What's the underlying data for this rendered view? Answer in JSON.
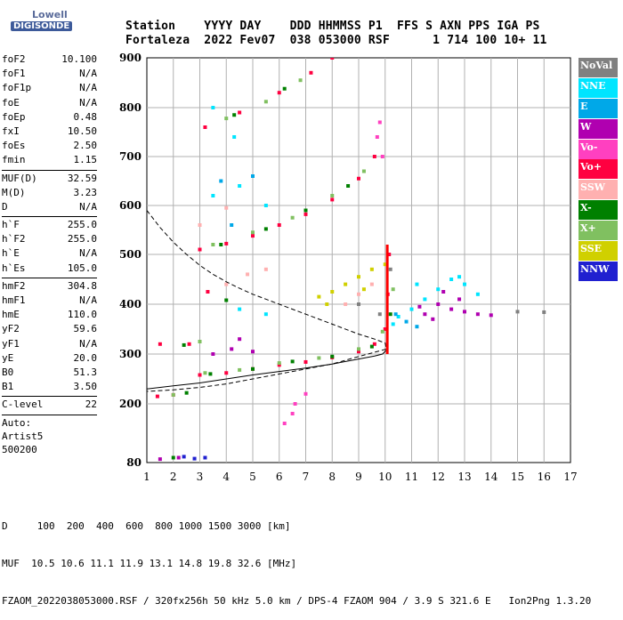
{
  "logo": {
    "top": "Lowell",
    "bottom": "DIGISONDE"
  },
  "header": {
    "row1": "Station    YYYY DAY    DDD HHMMSS P1  FFS S AXN PPS IGA PS",
    "row2": "Fortaleza  2022 Fev07  038 053000 RSF      1 714 100 10+ 11"
  },
  "parameters": {
    "group1": [
      {
        "label": "foF2",
        "value": "10.100"
      },
      {
        "label": "foF1",
        "value": "N/A"
      },
      {
        "label": "foF1p",
        "value": "N/A"
      },
      {
        "label": "foE",
        "value": "N/A"
      },
      {
        "label": "foEp",
        "value": "0.48"
      },
      {
        "label": "fxI",
        "value": "10.50"
      },
      {
        "label": "foEs",
        "value": "2.50"
      },
      {
        "label": "fmin",
        "value": "1.15"
      }
    ],
    "group2": [
      {
        "label": "MUF(D)",
        "value": "32.59"
      },
      {
        "label": "M(D)",
        "value": "3.23"
      },
      {
        "label": "D",
        "value": "N/A"
      }
    ],
    "group3": [
      {
        "label": "h`F",
        "value": "255.0"
      },
      {
        "label": "h`F2",
        "value": "255.0"
      },
      {
        "label": "h`E",
        "value": "N/A"
      },
      {
        "label": "h`Es",
        "value": "105.0"
      }
    ],
    "group4": [
      {
        "label": "hmF2",
        "value": "304.8"
      },
      {
        "label": "hmF1",
        "value": "N/A"
      },
      {
        "label": "hmE",
        "value": "110.0"
      },
      {
        "label": "yF2",
        "value": "59.6"
      },
      {
        "label": "yF1",
        "value": "N/A"
      },
      {
        "label": "yE",
        "value": "20.0"
      },
      {
        "label": "B0",
        "value": "51.3"
      },
      {
        "label": "B1",
        "value": "3.50"
      }
    ],
    "clevel": {
      "label": "C-level",
      "value": "22"
    },
    "auto": [
      "Auto:",
      "Artist5",
      "500200"
    ]
  },
  "legend": [
    {
      "label": "NoVal",
      "color": "#808080"
    },
    {
      "label": "NNE",
      "color": "#00e5ff"
    },
    {
      "label": "E",
      "color": "#00a8e8"
    },
    {
      "label": "W",
      "color": "#b000b0"
    },
    {
      "label": "Vo-",
      "color": "#ff40c0"
    },
    {
      "label": "Vo+",
      "color": "#ff0040"
    },
    {
      "label": "SSW",
      "color": "#ffb0b0"
    },
    {
      "label": "X-",
      "color": "#008000"
    },
    {
      "label": "X+",
      "color": "#80c060"
    },
    {
      "label": "SSE",
      "color": "#d0d000"
    },
    {
      "label": "NNW",
      "color": "#2020d0"
    }
  ],
  "chart_data": {
    "type": "scatter",
    "title": "",
    "xlabel": "",
    "ylabel": "",
    "xlim": [
      1,
      17
    ],
    "ylim": [
      80,
      900
    ],
    "x_ticks": [
      "1",
      "2",
      "3",
      "4",
      "5",
      "6",
      "7",
      "8",
      "9",
      "10",
      "11",
      "12",
      "13",
      "14",
      "15",
      "16",
      "17"
    ],
    "y_ticks": [
      "80",
      "200",
      "300",
      "400",
      "500",
      "600",
      "700",
      "800",
      "900"
    ],
    "y_tick_values": [
      80,
      200,
      300,
      400,
      500,
      600,
      700,
      800,
      900
    ],
    "grid": true,
    "series": [
      {
        "name": "Vo+",
        "color": "#ff0040",
        "points": [
          [
            3.0,
            258
          ],
          [
            4.0,
            262
          ],
          [
            5.0,
            270
          ],
          [
            6.0,
            278
          ],
          [
            7.0,
            284
          ],
          [
            8.0,
            293
          ],
          [
            9.0,
            305
          ],
          [
            9.6,
            320
          ],
          [
            10.0,
            350
          ],
          [
            10.1,
            420
          ],
          [
            10.15,
            500
          ],
          [
            3.0,
            510
          ],
          [
            4.0,
            522
          ],
          [
            5.0,
            538
          ],
          [
            6.0,
            560
          ],
          [
            7.0,
            582
          ],
          [
            8.0,
            612
          ],
          [
            9.0,
            655
          ],
          [
            9.6,
            700
          ],
          [
            3.2,
            760
          ],
          [
            4.5,
            790
          ],
          [
            6.0,
            830
          ],
          [
            7.2,
            870
          ],
          [
            8.0,
            900
          ],
          [
            1.4,
            215
          ],
          [
            2.0,
            218
          ],
          [
            2.6,
            320
          ],
          [
            3.3,
            425
          ],
          [
            1.5,
            320
          ]
        ]
      },
      {
        "name": "X+",
        "color": "#80c060",
        "points": [
          [
            3.2,
            262
          ],
          [
            4.5,
            268
          ],
          [
            6.0,
            282
          ],
          [
            7.5,
            292
          ],
          [
            9.0,
            310
          ],
          [
            9.9,
            345
          ],
          [
            10.3,
            430
          ],
          [
            3.5,
            520
          ],
          [
            5.0,
            545
          ],
          [
            6.5,
            575
          ],
          [
            8.0,
            620
          ],
          [
            9.2,
            670
          ],
          [
            4.0,
            778
          ],
          [
            5.5,
            812
          ],
          [
            6.8,
            855
          ],
          [
            2.0,
            218
          ],
          [
            3.0,
            325
          ]
        ]
      },
      {
        "name": "X-",
        "color": "#008000",
        "points": [
          [
            3.4,
            260
          ],
          [
            5.0,
            270
          ],
          [
            6.5,
            285
          ],
          [
            8.0,
            295
          ],
          [
            9.5,
            315
          ],
          [
            10.2,
            380
          ],
          [
            3.8,
            520
          ],
          [
            5.5,
            552
          ],
          [
            7.0,
            590
          ],
          [
            8.6,
            640
          ],
          [
            4.3,
            785
          ],
          [
            6.2,
            838
          ],
          [
            2.5,
            222
          ],
          [
            2.4,
            318
          ],
          [
            4.0,
            408
          ],
          [
            2.0,
            90
          ]
        ]
      },
      {
        "name": "W",
        "color": "#b000b0",
        "points": [
          [
            11.5,
            380
          ],
          [
            12.0,
            400
          ],
          [
            12.5,
            390
          ],
          [
            13.0,
            385
          ],
          [
            12.2,
            425
          ],
          [
            11.8,
            370
          ],
          [
            13.5,
            380
          ],
          [
            12.8,
            410
          ],
          [
            11.3,
            395
          ],
          [
            14.0,
            378
          ],
          [
            3.5,
            300
          ],
          [
            4.2,
            310
          ],
          [
            5.0,
            305
          ],
          [
            4.5,
            330
          ],
          [
            2.2,
            90
          ],
          [
            1.5,
            87
          ]
        ]
      },
      {
        "name": "NNE",
        "color": "#00e5ff",
        "points": [
          [
            10.5,
            375
          ],
          [
            11.0,
            390
          ],
          [
            11.5,
            410
          ],
          [
            12.0,
            430
          ],
          [
            12.5,
            450
          ],
          [
            13.0,
            440
          ],
          [
            10.3,
            360
          ],
          [
            11.2,
            440
          ],
          [
            12.8,
            455
          ],
          [
            13.5,
            420
          ],
          [
            3.5,
            620
          ],
          [
            4.5,
            640
          ],
          [
            5.5,
            600
          ],
          [
            3.5,
            800
          ],
          [
            4.3,
            740
          ],
          [
            4.5,
            390
          ],
          [
            5.5,
            380
          ]
        ]
      },
      {
        "name": "SSE",
        "color": "#d0d000",
        "points": [
          [
            7.5,
            415
          ],
          [
            8.0,
            425
          ],
          [
            8.5,
            440
          ],
          [
            9.0,
            455
          ],
          [
            9.5,
            470
          ],
          [
            10.0,
            480
          ],
          [
            7.8,
            400
          ],
          [
            9.2,
            430
          ]
        ]
      },
      {
        "name": "SSW",
        "color": "#ffb0b0",
        "points": [
          [
            8.5,
            400
          ],
          [
            9.0,
            420
          ],
          [
            9.5,
            440
          ],
          [
            4.0,
            440
          ],
          [
            4.8,
            460
          ],
          [
            5.5,
            470
          ],
          [
            3.0,
            560
          ],
          [
            4.0,
            595
          ]
        ]
      },
      {
        "name": "E",
        "color": "#00a8e8",
        "points": [
          [
            10.4,
            380
          ],
          [
            10.8,
            365
          ],
          [
            11.2,
            355
          ],
          [
            3.8,
            650
          ],
          [
            4.2,
            560
          ],
          [
            5.0,
            660
          ]
        ]
      },
      {
        "name": "Vo-",
        "color": "#ff40c0",
        "points": [
          [
            9.7,
            740
          ],
          [
            9.8,
            770
          ],
          [
            9.9,
            700
          ],
          [
            6.6,
            200
          ],
          [
            7.0,
            220
          ],
          [
            6.2,
            160
          ],
          [
            6.5,
            180
          ]
        ]
      },
      {
        "name": "NoVal",
        "color": "#808080",
        "points": [
          [
            9.0,
            400
          ],
          [
            9.8,
            380
          ],
          [
            10.2,
            470
          ],
          [
            15.0,
            385
          ],
          [
            16.0,
            384
          ]
        ]
      },
      {
        "name": "NNW",
        "color": "#2020d0",
        "points": [
          [
            3.2,
            90
          ],
          [
            2.8,
            88
          ],
          [
            2.4,
            92
          ]
        ]
      }
    ],
    "profile_solid": [
      [
        1.0,
        230
      ],
      [
        2.0,
        236
      ],
      [
        3.0,
        242
      ],
      [
        4.0,
        250
      ],
      [
        5.0,
        258
      ],
      [
        6.0,
        265
      ],
      [
        7.0,
        272
      ],
      [
        8.0,
        280
      ],
      [
        9.0,
        290
      ],
      [
        9.6,
        296
      ],
      [
        9.9,
        300
      ],
      [
        10.05,
        308
      ]
    ],
    "profile_dashed": [
      [
        1.0,
        590
      ],
      [
        1.5,
        555
      ],
      [
        2.0,
        525
      ],
      [
        2.5,
        500
      ],
      [
        3.0,
        478
      ],
      [
        3.5,
        460
      ],
      [
        4.0,
        445
      ],
      [
        4.5,
        432
      ],
      [
        5.0,
        420
      ],
      [
        6.0,
        400
      ],
      [
        7.0,
        380
      ],
      [
        8.0,
        360
      ],
      [
        9.0,
        340
      ],
      [
        9.6,
        330
      ],
      [
        10.0,
        322
      ],
      [
        10.05,
        310
      ],
      [
        9.0,
        295
      ],
      [
        8.0,
        280
      ],
      [
        7.0,
        270
      ],
      [
        6.0,
        260
      ],
      [
        5.0,
        250
      ],
      [
        4.0,
        240
      ],
      [
        3.0,
        233
      ],
      [
        2.0,
        228
      ],
      [
        1.0,
        225
      ]
    ],
    "muf_bar": {
      "x": 10.08,
      "ymin": 300,
      "ymax": 520
    }
  },
  "footer": {
    "d_row": "D     100  200  400  600  800 1000 1500 3000 [km]",
    "muf_row": "MUF  10.5 10.6 11.1 11.9 13.1 14.8 19.8 32.6 [MHz]",
    "info_row": "FZAOM_2022038053000.RSF / 320fx256h 50 kHz 5.0 km / DPS-4 FZAOM 904 / 3.9 S 321.6 E   Ion2Png 1.3.20"
  }
}
